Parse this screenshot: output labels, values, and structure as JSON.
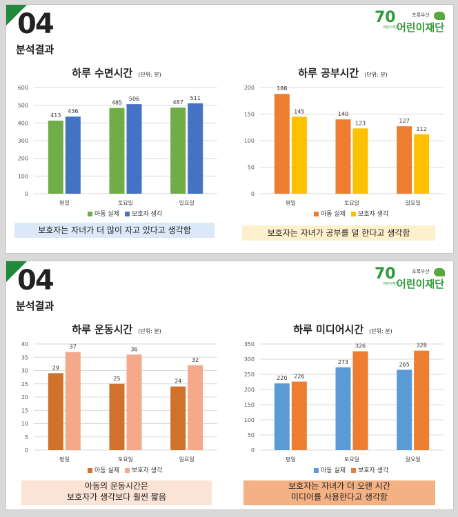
{
  "slides": [
    {
      "number": "04",
      "subtitle": "분석결과",
      "logo": {
        "seventy": "70",
        "tiny": "어린이재단",
        "small": "초록우산",
        "name": "어린이재단"
      },
      "charts": [
        {
          "title": "하루 수면시간",
          "unit": "(단위: 분)",
          "note": [
            "보호자는 자녀가 더 많이 자고 있다고 생각함"
          ]
        },
        {
          "title": "하루 공부시간",
          "unit": "(단위: 분)",
          "note": [
            "보호자는 자녀가 공부를 덜 한다고 생각함"
          ]
        }
      ]
    },
    {
      "number": "04",
      "subtitle": "분석결과",
      "logo": {
        "seventy": "70",
        "tiny": "어린이재단",
        "small": "초록우산",
        "name": "어린이재단"
      },
      "charts": [
        {
          "title": "하루 운동시간",
          "unit": "(단위: 분)",
          "note": [
            "아동의 운동시간은",
            "보호자가 생각보다 훨씬 짧음"
          ]
        },
        {
          "title": "하루 미디어시간",
          "unit": "(단위: 분)",
          "note": [
            "보호자는 자녀가 더 오랜 시간",
            "미디어를 사용한다고 생각함"
          ]
        }
      ]
    }
  ],
  "chart_data": [
    {
      "type": "bar",
      "title": "하루 수면시간",
      "categories": [
        "평일",
        "토요일",
        "일요일"
      ],
      "ylim": [
        0,
        600
      ],
      "yticks": [
        0,
        100,
        200,
        300,
        400,
        500,
        600
      ],
      "series": [
        {
          "name": "아동 실제",
          "color": "#70ad47",
          "values": [
            413,
            485,
            487
          ]
        },
        {
          "name": "보호자 생각",
          "color": "#4472c4",
          "values": [
            436,
            506,
            511
          ]
        }
      ]
    },
    {
      "type": "bar",
      "title": "하루 공부시간",
      "categories": [
        "평일",
        "토요일",
        "일요일"
      ],
      "ylim": [
        0,
        200
      ],
      "yticks": [
        0,
        50,
        100,
        150,
        200
      ],
      "series": [
        {
          "name": "아동 실제",
          "color": "#ed7d31",
          "values": [
            188,
            140,
            127
          ]
        },
        {
          "name": "보호자 생각",
          "color": "#ffc000",
          "values": [
            145,
            123,
            112
          ]
        }
      ]
    },
    {
      "type": "bar",
      "title": "하루 운동시간",
      "categories": [
        "평일",
        "토요일",
        "일요일"
      ],
      "ylim": [
        0,
        40
      ],
      "yticks": [
        0,
        5,
        10,
        15,
        20,
        25,
        30,
        35,
        40
      ],
      "series": [
        {
          "name": "아동 실제",
          "color": "#d0712c",
          "values": [
            29,
            25,
            24
          ]
        },
        {
          "name": "보호자 생각",
          "color": "#f4a98a",
          "values": [
            37,
            36,
            32
          ]
        }
      ]
    },
    {
      "type": "bar",
      "title": "하루 미디어시간",
      "categories": [
        "평일",
        "토요일",
        "일요일"
      ],
      "ylim": [
        0,
        350
      ],
      "yticks": [
        0,
        50,
        100,
        150,
        200,
        250,
        300,
        350
      ],
      "series": [
        {
          "name": "아동 실제",
          "color": "#5b9bd5",
          "values": [
            220,
            273,
            265
          ]
        },
        {
          "name": "보호자 생각",
          "color": "#ed7d31",
          "values": [
            226,
            326,
            328
          ]
        }
      ]
    }
  ],
  "notes_style": [
    {
      "bg": "#dbe8f7"
    },
    {
      "bg": "#fdf0cc"
    },
    {
      "bg": "#fbe3d6"
    },
    {
      "bg": "#f4b183"
    }
  ]
}
